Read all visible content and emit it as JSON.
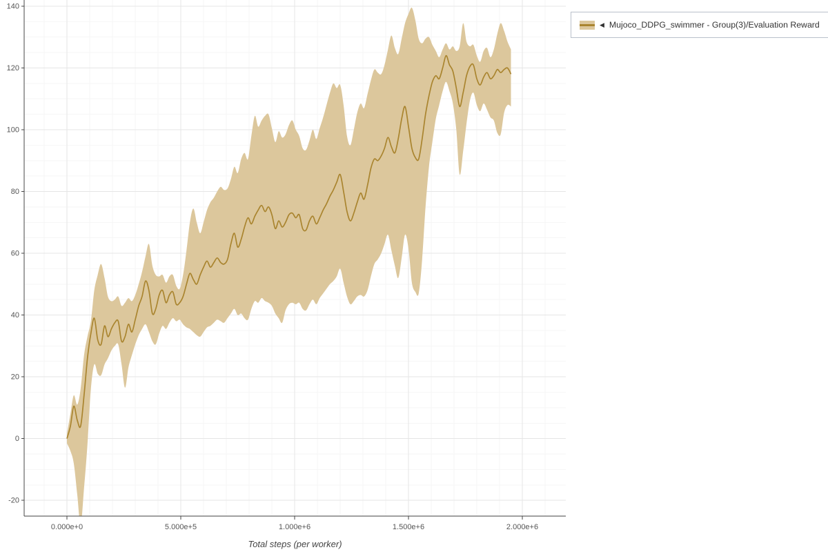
{
  "legend": {
    "arrow": "◀",
    "label": "Mujoco_DDPG_swimmer - Group(3)/Evaluation Reward"
  },
  "colors": {
    "line": "#a9842e",
    "band": "#dcc79c",
    "grid": "#e5e5e5",
    "grid_minor": "#f6f6f6",
    "axis": "#444444",
    "tick_text": "#555555",
    "legend_border": "#b9c0ca"
  },
  "chart_data": {
    "type": "line",
    "title": "",
    "xlabel": "Total steps (per worker)",
    "ylabel": "",
    "grid": true,
    "legend_position": "top-right",
    "xlim": [
      -188000,
      2191000
    ],
    "ylim": [
      -25.1,
      142
    ],
    "xticks": {
      "values": [
        0,
        500000,
        1000000,
        1500000,
        2000000
      ],
      "labels": [
        "0.000e+0",
        "5.000e+5",
        "1.000e+6",
        "1.500e+6",
        "2.000e+6"
      ]
    },
    "yticks": {
      "values": [
        -20,
        0,
        20,
        40,
        60,
        80,
        100,
        120,
        140
      ],
      "labels": [
        "-20",
        "0",
        "20",
        "40",
        "60",
        "80",
        "100",
        "120",
        "140"
      ]
    },
    "series": [
      {
        "name": "Mujoco_DDPG_swimmer - Group(3)/Evaluation Reward",
        "x": [
          0,
          15000,
          30000,
          45000,
          60000,
          75000,
          90000,
          105000,
          120000,
          135000,
          150000,
          165000,
          180000,
          195000,
          210000,
          225000,
          240000,
          255000,
          270000,
          285000,
          300000,
          315000,
          330000,
          345000,
          360000,
          375000,
          390000,
          405000,
          420000,
          435000,
          450000,
          465000,
          480000,
          495000,
          510000,
          525000,
          540000,
          555000,
          570000,
          585000,
          600000,
          615000,
          630000,
          645000,
          660000,
          675000,
          690000,
          705000,
          720000,
          735000,
          750000,
          765000,
          780000,
          795000,
          810000,
          825000,
          840000,
          855000,
          870000,
          885000,
          900000,
          915000,
          930000,
          945000,
          960000,
          975000,
          990000,
          1005000,
          1020000,
          1035000,
          1050000,
          1065000,
          1080000,
          1095000,
          1110000,
          1125000,
          1140000,
          1155000,
          1170000,
          1185000,
          1200000,
          1215000,
          1230000,
          1245000,
          1260000,
          1275000,
          1290000,
          1305000,
          1320000,
          1335000,
          1350000,
          1365000,
          1380000,
          1395000,
          1410000,
          1425000,
          1440000,
          1455000,
          1470000,
          1485000,
          1500000,
          1515000,
          1530000,
          1545000,
          1560000,
          1575000,
          1590000,
          1605000,
          1620000,
          1635000,
          1650000,
          1665000,
          1680000,
          1695000,
          1710000,
          1725000,
          1740000,
          1755000,
          1770000,
          1785000,
          1800000,
          1815000,
          1830000,
          1845000,
          1860000,
          1875000,
          1890000,
          1905000,
          1920000,
          1935000,
          1950000
        ],
        "mean": [
          0,
          4,
          10.5,
          6,
          4,
          14,
          26,
          34,
          39,
          32,
          30.5,
          36.5,
          33,
          35.5,
          37.5,
          38,
          31.5,
          33,
          37,
          34.5,
          38.5,
          43,
          46,
          51,
          48,
          40.5,
          42,
          46.5,
          48,
          44,
          46.5,
          47.5,
          43.5,
          44,
          46,
          50,
          53.5,
          51.5,
          50,
          53,
          55.5,
          57.5,
          55.5,
          57,
          58.5,
          57,
          56.5,
          58,
          63,
          66.5,
          62,
          64.5,
          68.5,
          71.5,
          69.5,
          72,
          74,
          75.5,
          73.5,
          75,
          72.5,
          68,
          70.5,
          68.5,
          70,
          72.5,
          73,
          71.5,
          72.5,
          68,
          67.5,
          70.5,
          72,
          69.5,
          71.5,
          74,
          76,
          78.5,
          80.5,
          83,
          85.5,
          80,
          73.5,
          70.5,
          73,
          76.5,
          79.5,
          77.5,
          82,
          87.5,
          90.5,
          90,
          91.5,
          94,
          97.5,
          94.5,
          92.5,
          97,
          103.5,
          107.5,
          101,
          94,
          91,
          90.5,
          97,
          105,
          111,
          115.5,
          117.5,
          116.5,
          120,
          124,
          121,
          119,
          113.5,
          107.5,
          112,
          117.5,
          120.5,
          121,
          116.5,
          114.5,
          117,
          118.5,
          116.5,
          117.5,
          119.5,
          118.5,
          119.5,
          120,
          118
        ],
        "upper": [
          1.5,
          8,
          14,
          11,
          16,
          27,
          33,
          38,
          48,
          53,
          56.5,
          52,
          46,
          44.5,
          45,
          46,
          43,
          44,
          45.5,
          44.5,
          46.5,
          50,
          54,
          59,
          63,
          56,
          53,
          52.5,
          53,
          50.5,
          52.5,
          53,
          49.5,
          48.5,
          53,
          61,
          70,
          74.5,
          70,
          66.5,
          70,
          74,
          76.5,
          78,
          80,
          81.5,
          80.5,
          81,
          84,
          88,
          86,
          90.5,
          92.5,
          90.5,
          98,
          104.5,
          101,
          103,
          104.5,
          105,
          100.5,
          96,
          99.5,
          97.5,
          98.5,
          101.5,
          103,
          100,
          98,
          94,
          93.5,
          96.5,
          100,
          97,
          100.5,
          104,
          108,
          112,
          115,
          113.5,
          114.5,
          108,
          98,
          95,
          100,
          105.5,
          108.5,
          107,
          111.5,
          116,
          119.5,
          118.5,
          118,
          121,
          126,
          130.5,
          126.5,
          124.5,
          129.5,
          134.5,
          137.5,
          139.5,
          135.5,
          129.5,
          128,
          129.5,
          130,
          127.5,
          125.5,
          123.5,
          126,
          128,
          126,
          127,
          125.5,
          127,
          134.5,
          128.5,
          127,
          127.5,
          124,
          122,
          125.5,
          126.5,
          123.5,
          126,
          131,
          134.5,
          132,
          128.5,
          126
        ],
        "lower": [
          -1.5,
          -4,
          -8,
          -18,
          -28,
          -16,
          -2,
          16,
          24,
          21,
          20.5,
          24,
          26,
          28.5,
          30,
          30.5,
          24,
          16.5,
          23,
          27,
          30.5,
          33.5,
          35.5,
          37,
          34.5,
          31.5,
          30.5,
          34,
          36.5,
          35.5,
          37.5,
          39,
          38,
          38.5,
          37,
          36,
          35.5,
          34.5,
          33.5,
          33,
          34.5,
          36,
          36.5,
          37.5,
          38.5,
          38,
          37.5,
          39,
          40.5,
          42,
          40,
          40.5,
          39,
          38.5,
          42,
          44.5,
          44,
          45.5,
          44.5,
          44,
          43,
          40.5,
          39,
          37.5,
          41.5,
          43.5,
          44,
          43.5,
          44,
          42,
          41.5,
          43.5,
          45,
          43.5,
          45.5,
          47,
          48.5,
          50,
          51,
          52.5,
          55,
          50.5,
          46,
          43.5,
          44.5,
          46,
          46.5,
          46,
          48,
          52.5,
          56.5,
          58,
          60,
          63,
          66,
          61,
          56,
          52,
          58.5,
          66,
          61.5,
          50.5,
          47.5,
          47,
          58,
          75,
          88,
          96,
          103.5,
          108,
          112.5,
          115.5,
          112.5,
          108.5,
          100,
          85.5,
          93,
          102,
          109.5,
          112,
          108,
          106,
          108.5,
          106.5,
          104,
          103,
          99,
          98.5,
          105.5,
          108,
          107.5
        ]
      }
    ]
  }
}
